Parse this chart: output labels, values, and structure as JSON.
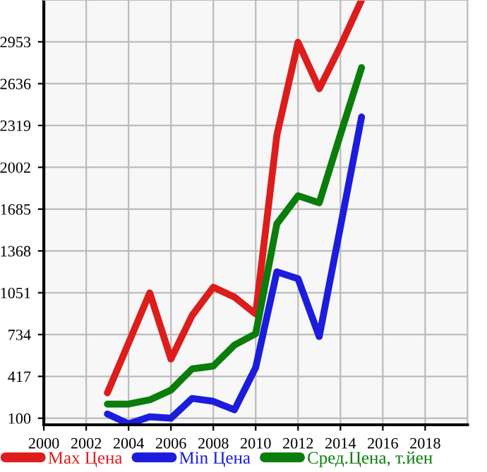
{
  "chart_data": {
    "type": "line",
    "x": [
      2003,
      2004,
      2005,
      2006,
      2007,
      2008,
      2009,
      2010,
      2011,
      2012,
      2013,
      2014,
      2015
    ],
    "series": [
      {
        "name": "Max Цена",
        "color": "#dd1c1c",
        "values": [
          292,
          670,
          1050,
          548,
          879,
          1093,
          1018,
          890,
          2245,
          2950,
          2597,
          2920,
          3270
        ]
      },
      {
        "name": "Min Цена",
        "color": "#1c1cdd",
        "values": [
          132,
          57,
          111,
          100,
          250,
          228,
          164,
          484,
          1210,
          1157,
          719,
          1550,
          2384
        ]
      },
      {
        "name": "Сред.Цена, т.йен",
        "color": "#0a7d0a",
        "values": [
          207,
          207,
          239,
          313,
          474,
          495,
          655,
          740,
          1573,
          1786,
          1733,
          2250,
          2758
        ]
      }
    ],
    "xlim": [
      2000,
      2020
    ],
    "xticks": [
      2000,
      2002,
      2004,
      2006,
      2008,
      2010,
      2012,
      2014,
      2016,
      2018
    ],
    "ylim": [
      50,
      3270
    ],
    "yticks": [
      100,
      417,
      734,
      1051,
      1368,
      1685,
      2002,
      2319,
      2636,
      2953
    ],
    "grid": true,
    "legend": "bottom",
    "marker": "none",
    "line_style": "solid"
  }
}
